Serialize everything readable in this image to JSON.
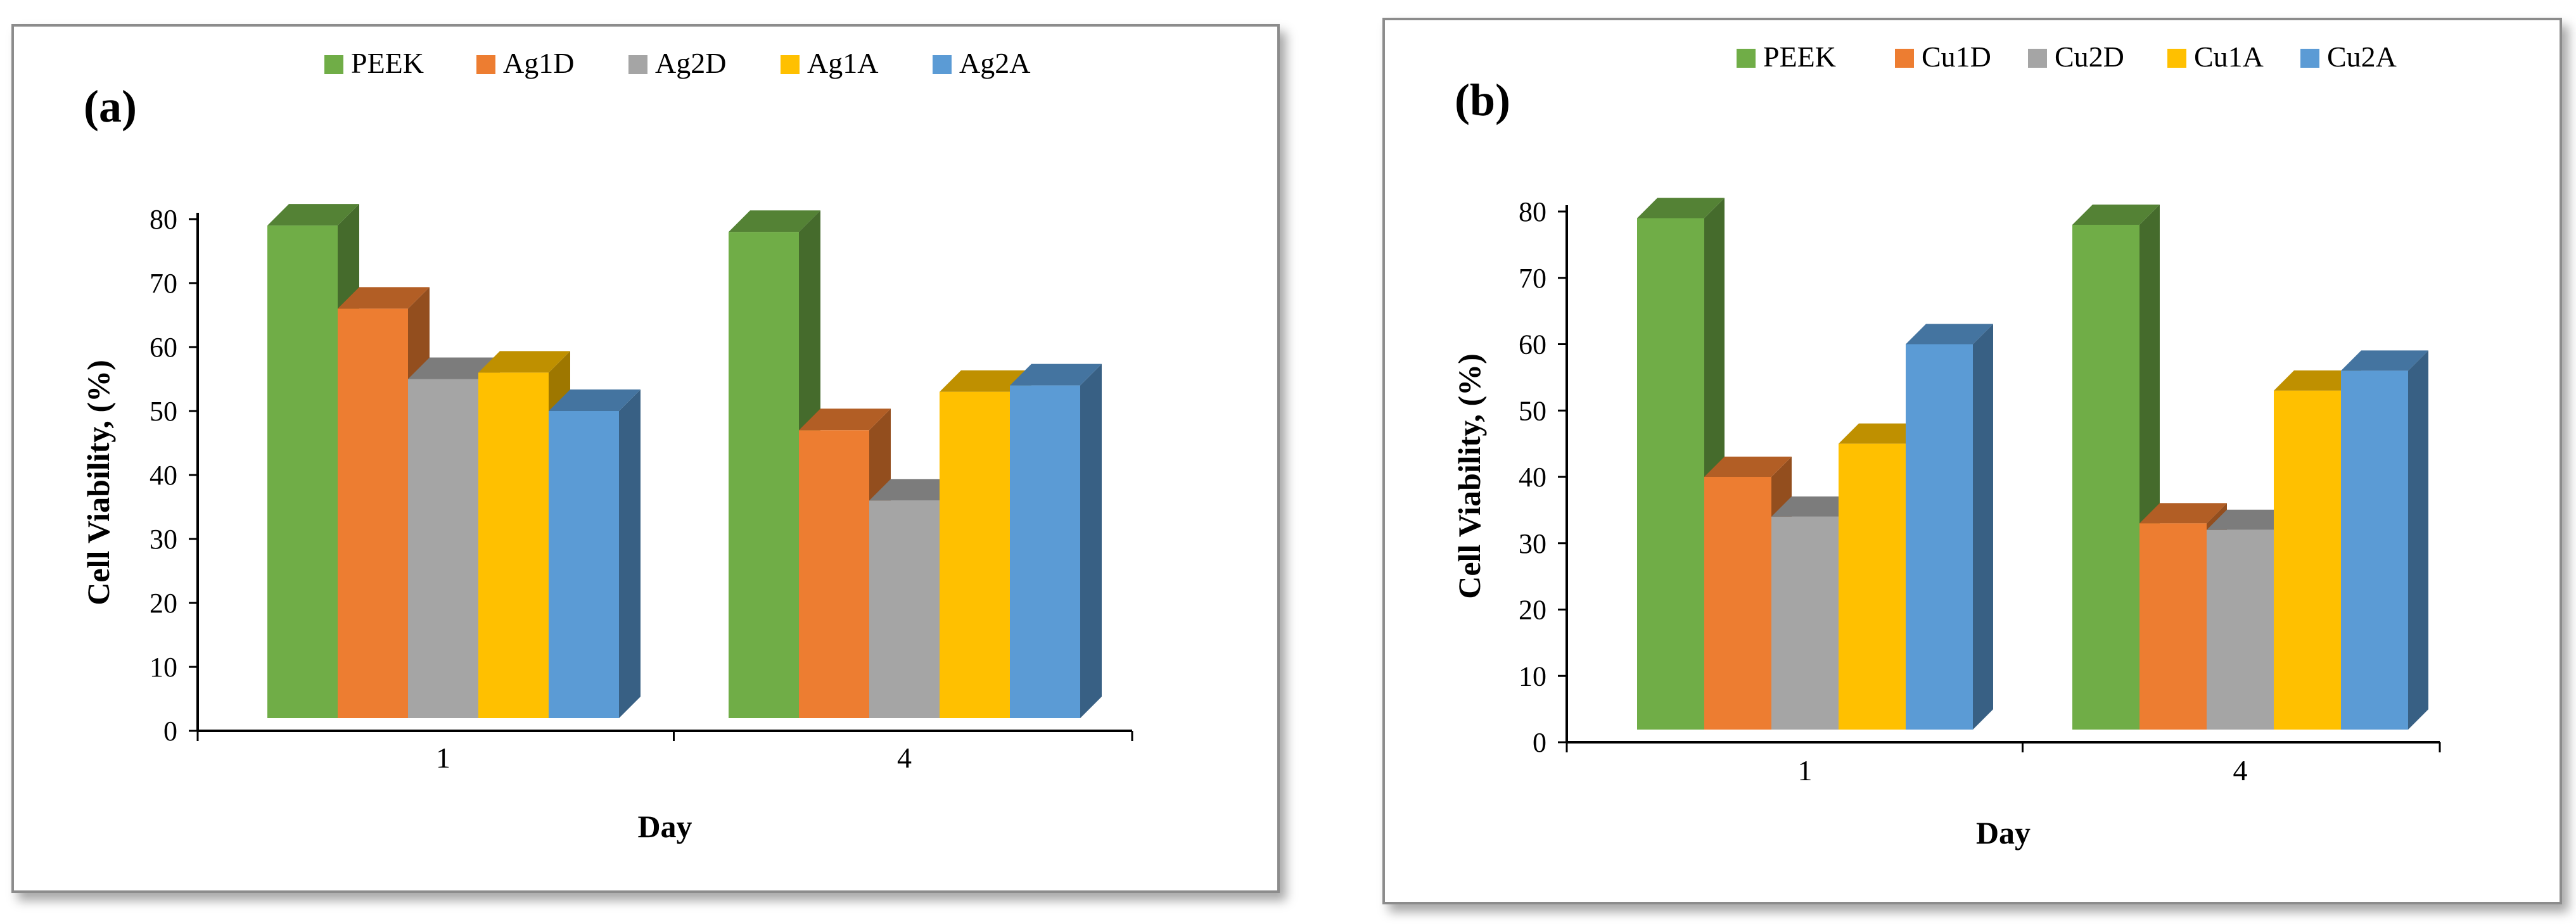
{
  "chart_data": [
    {
      "type": "bar",
      "panel_label": "(a)",
      "categories": [
        "1",
        "4"
      ],
      "series": [
        {
          "name": "PEEK",
          "values": [
            79,
            78
          ]
        },
        {
          "name": "Ag1D",
          "values": [
            66,
            47
          ]
        },
        {
          "name": "Ag2D",
          "values": [
            55,
            36
          ]
        },
        {
          "name": "Ag1A",
          "values": [
            56,
            53
          ]
        },
        {
          "name": "Ag2A",
          "values": [
            50,
            54
          ]
        }
      ],
      "xlabel": "Day",
      "ylabel": "Cell Viability, (%)",
      "ylim": [
        0,
        80
      ],
      "yticks": [
        "0",
        "10",
        "20",
        "30",
        "40",
        "50",
        "60",
        "70",
        "80"
      ],
      "grid": false,
      "legend_position": "top"
    },
    {
      "type": "bar",
      "panel_label": "(b)",
      "categories": [
        "1",
        "4"
      ],
      "series": [
        {
          "name": "PEEK",
          "values": [
            79,
            78
          ]
        },
        {
          "name": "Cu1D",
          "values": [
            40,
            33
          ]
        },
        {
          "name": "Cu2D",
          "values": [
            34,
            32
          ]
        },
        {
          "name": "Cu1A",
          "values": [
            45,
            53
          ]
        },
        {
          "name": "Cu2A",
          "values": [
            60,
            56
          ]
        }
      ],
      "xlabel": "Day",
      "ylabel": "Cell Viability,  (%)",
      "ylim": [
        0,
        80
      ],
      "yticks": [
        "0",
        "10",
        "20",
        "30",
        "40",
        "50",
        "60",
        "70",
        "80"
      ],
      "grid": false,
      "legend_position": "top"
    }
  ],
  "series_colors": [
    "#70ad47",
    "#ed7d31",
    "#a5a5a5",
    "#ffc000",
    "#5b9bd5"
  ]
}
